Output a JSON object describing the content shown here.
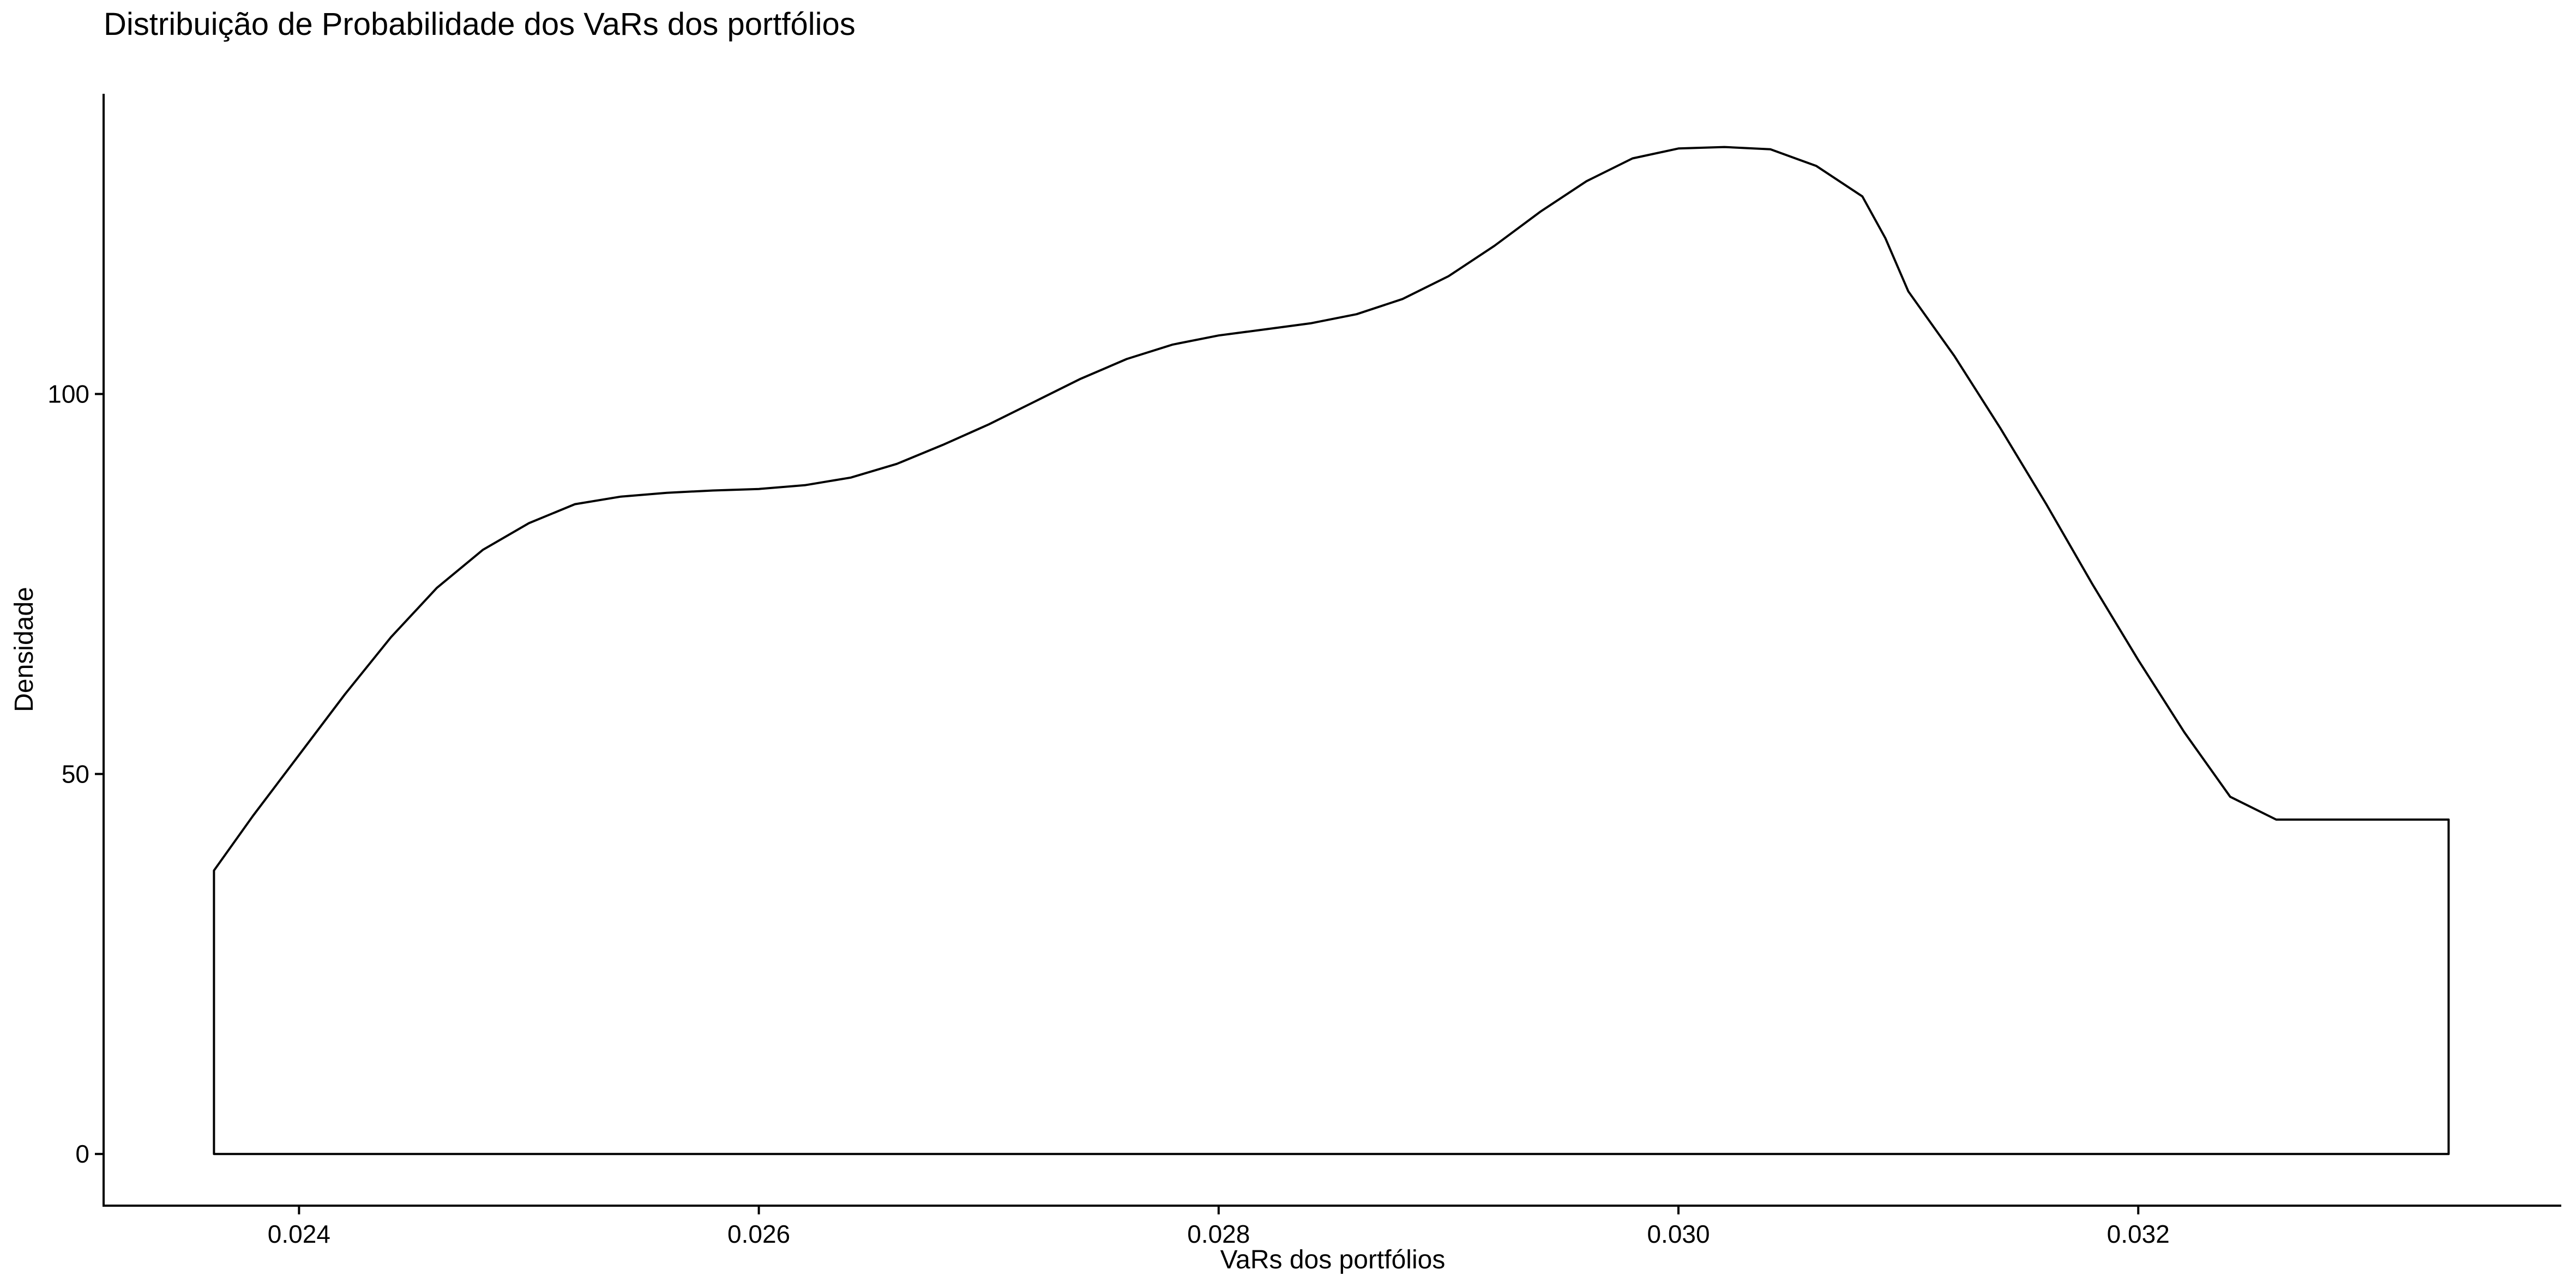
{
  "chart_data": {
    "type": "area",
    "title": "Distribuição de Probabilidade dos VaRs dos portfólios",
    "xlabel": "VaRs dos portfólios",
    "ylabel": "Densidade",
    "xlim": [
      0.02315,
      0.03384
    ],
    "ylim": [
      -6.8,
      139.5
    ],
    "x_ticks": [
      0.024,
      0.026,
      0.028,
      0.03,
      0.032
    ],
    "x_tick_labels": [
      "0.024",
      "0.026",
      "0.028",
      "0.030",
      "0.032"
    ],
    "y_ticks": [
      0,
      50,
      100
    ],
    "y_tick_labels": [
      "0",
      "50",
      "100"
    ],
    "grid": false,
    "legend": "none",
    "colors": {
      "line": "#000000",
      "fill": "#ffffff"
    },
    "series": [
      {
        "x": [
          0.02363,
          0.0238,
          0.024,
          0.0242,
          0.0244,
          0.0246,
          0.0248,
          0.025,
          0.0252,
          0.0254,
          0.0256,
          0.0258,
          0.026,
          0.0262,
          0.0264,
          0.0266,
          0.0268,
          0.027,
          0.0272,
          0.0274,
          0.0276,
          0.0278,
          0.028,
          0.0282,
          0.0284,
          0.0286,
          0.0288,
          0.029,
          0.0292,
          0.0294,
          0.0296,
          0.0298,
          0.03,
          0.0302,
          0.0304,
          0.0306,
          0.0308,
          0.0309,
          0.031,
          0.0312,
          0.0314,
          0.0316,
          0.0318,
          0.032,
          0.0322,
          0.0324,
          0.0326,
          0.0328,
          0.033,
          0.0332,
          0.03335
        ],
        "y": [
          37.3,
          44.5,
          52.5,
          60.5,
          68.0,
          74.5,
          79.5,
          83.0,
          85.5,
          86.5,
          87.0,
          87.3,
          87.5,
          88.0,
          89.0,
          90.8,
          93.3,
          96.0,
          99.0,
          102.0,
          104.6,
          106.5,
          107.7,
          108.5,
          109.3,
          110.5,
          112.5,
          115.5,
          119.5,
          124.0,
          128.0,
          131.0,
          132.3,
          132.5,
          132.2,
          130.0,
          126.0,
          120.5,
          113.5,
          105.0,
          95.5,
          85.5,
          75.0,
          65.0,
          55.5,
          47.0,
          44.0,
          44.0,
          44.0,
          44.0,
          44.0
        ]
      }
    ]
  }
}
